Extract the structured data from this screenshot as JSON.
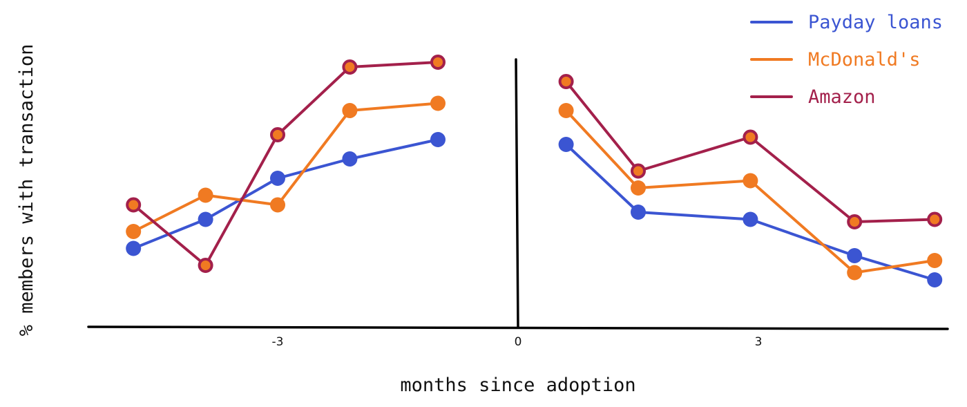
{
  "chart_data": {
    "type": "line",
    "title": "",
    "xlabel": "months since adoption",
    "ylabel": "% members with transaction",
    "x_ticks": [
      -3,
      0,
      3
    ],
    "xlim": [
      -5.4,
      5.4
    ],
    "ylim": [
      0,
      100
    ],
    "grid": false,
    "legend_position": "top-right",
    "series": [
      {
        "name": "Payday loans",
        "color": "#3b55d2",
        "marker": "dot",
        "x": [
          -4.8,
          -3.9,
          -3.0,
          -2.1,
          -1.0,
          0.6,
          1.5,
          2.9,
          4.2,
          5.2
        ],
        "y": [
          23,
          35,
          52,
          60,
          68,
          66,
          38,
          35,
          20,
          10
        ]
      },
      {
        "name": "McDonald's",
        "color": "#f07a22",
        "marker": "dot",
        "x": [
          -4.8,
          -3.9,
          -3.0,
          -2.1,
          -1.0,
          0.6,
          1.5,
          2.9,
          4.2,
          5.2
        ],
        "y": [
          30,
          45,
          41,
          80,
          83,
          80,
          48,
          51,
          13,
          18
        ]
      },
      {
        "name": "Amazon",
        "color": "#a3204b",
        "marker": "ring",
        "x": [
          -4.8,
          -3.9,
          -3.0,
          -2.1,
          -1.0,
          0.6,
          1.5,
          2.9,
          4.2,
          5.2
        ],
        "y": [
          41,
          16,
          70,
          98,
          100,
          92,
          55,
          69,
          34,
          35
        ]
      }
    ]
  }
}
